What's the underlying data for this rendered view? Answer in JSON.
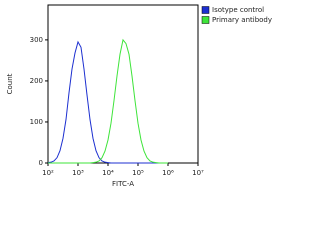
{
  "chart_data": {
    "type": "line",
    "x_label": "FITC-A",
    "y_label": "Count",
    "xscale": "log",
    "xlim": [
      100,
      10000000
    ],
    "xticks": [
      {
        "value": 100,
        "label": "10²"
      },
      {
        "value": 1000,
        "label": "10³"
      },
      {
        "value": 10000,
        "label": "10⁴"
      },
      {
        "value": 100000,
        "label": "10⁵"
      },
      {
        "value": 1000000,
        "label": "10⁶"
      },
      {
        "value": 10000000,
        "label": "10⁷"
      }
    ],
    "ylim": [
      0,
      385
    ],
    "yticks": [
      0,
      100,
      200,
      300
    ],
    "legend": "top-right",
    "x": [
      100,
      126,
      158,
      200,
      251,
      316,
      398,
      501,
      631,
      794,
      1000,
      1259,
      1585,
      1995,
      2512,
      3162,
      3981,
      5012,
      6310,
      7943,
      10000,
      12589,
      15849,
      19953,
      25119,
      31623,
      39811,
      50119,
      63096,
      79433,
      100000,
      125893,
      158489,
      199526,
      251189,
      316228,
      398107,
      501187,
      630957,
      794328,
      1000000
    ],
    "series": [
      {
        "name": "Isotype control",
        "color": "#1c2fd0",
        "values": [
          1,
          2,
          5,
          13,
          30,
          60,
          106,
          171,
          229,
          268,
          295,
          282,
          229,
          166,
          106,
          60,
          30,
          13,
          5,
          2,
          1,
          0,
          0,
          0,
          0,
          0,
          0,
          0,
          0,
          0,
          0,
          0,
          0,
          0,
          0,
          0,
          0,
          0,
          0,
          0,
          0
        ]
      },
      {
        "name": "Primary antibody",
        "color": "#3ee43a",
        "values": [
          0,
          0,
          0,
          0,
          0,
          0,
          0,
          0,
          0,
          0,
          0,
          0,
          0,
          0,
          0,
          1,
          2,
          5,
          13,
          29,
          56,
          97,
          152,
          212,
          265,
          300,
          291,
          265,
          212,
          152,
          97,
          56,
          29,
          13,
          5,
          2,
          1,
          0,
          0,
          0,
          0
        ]
      }
    ]
  }
}
